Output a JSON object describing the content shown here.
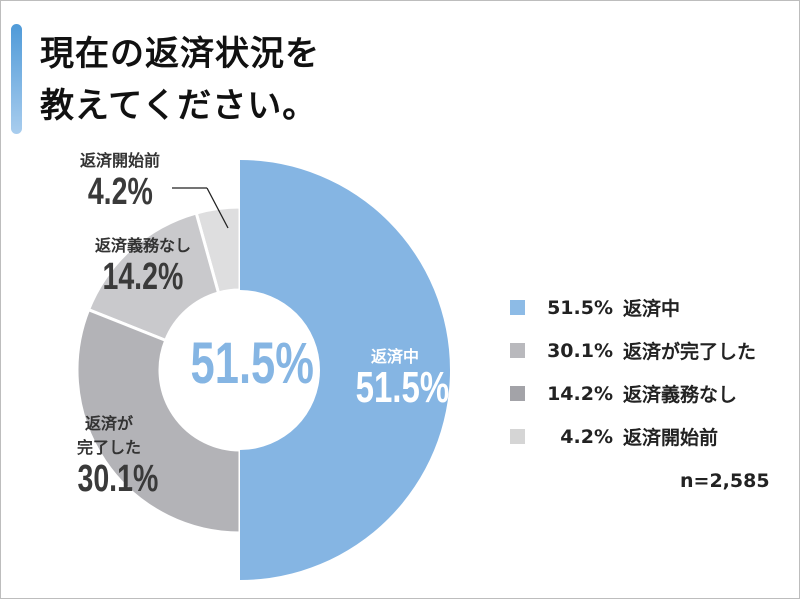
{
  "title_lines": [
    "現在の返済状況を",
    "教えてください。"
  ],
  "center_label": "51.5%",
  "sample_size": "n=2,585",
  "chart_data": {
    "type": "pie",
    "title": "現在の返済状況を教えてください。",
    "slices": [
      {
        "label": "返済中",
        "value": 51.5,
        "value_text": "51.5%",
        "color": "#85b5e3",
        "legend_color": "#8dbbe6"
      },
      {
        "label": "返済が完了した",
        "value": 30.1,
        "value_text": "30.1%",
        "color": "#b3b3b7",
        "legend_color": "#b9b9bd"
      },
      {
        "label": "返済義務なし",
        "value": 14.2,
        "value_text": "14.2%",
        "color": "#c9c9cc",
        "legend_color": "#a3a3a8"
      },
      {
        "label": "返済開始前",
        "value": 4.2,
        "value_text": "4.2%",
        "color": "#dededf",
        "legend_color": "#d5d5d5"
      }
    ],
    "slice_label_lines": {
      "repaid": [
        "返済が",
        "完了した"
      ]
    },
    "legend_placement": "right"
  }
}
